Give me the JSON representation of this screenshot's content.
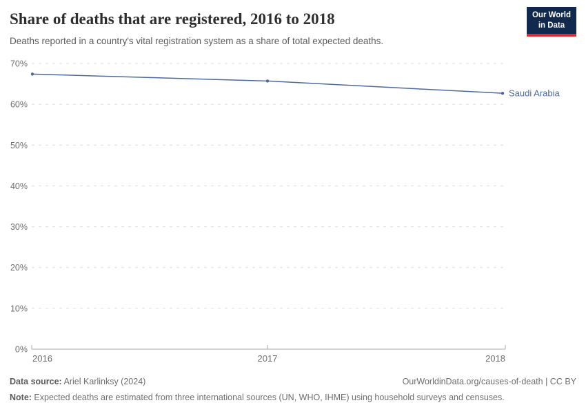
{
  "header": {
    "title": "Share of deaths that are registered, 2016 to 2018",
    "subtitle": "Deaths reported in a country's vital registration system as a share of total expected deaths.",
    "logo": {
      "line1": "Our World",
      "line2": "in Data",
      "bg_color": "#12294e",
      "accent_color": "#dc2e32"
    }
  },
  "chart_data": {
    "type": "line",
    "title": "Share of deaths that are registered, 2016 to 2018",
    "xlabel": "",
    "ylabel": "",
    "xlim": [
      2016,
      2018
    ],
    "ylim": [
      0,
      70
    ],
    "grid": "horizontal-dashed",
    "legend_position": "end-of-line-label",
    "xticks": [
      2016,
      2017,
      2018
    ],
    "yticks": [
      0,
      10,
      20,
      30,
      40,
      50,
      60,
      70
    ],
    "ytick_suffix": "%",
    "series": [
      {
        "name": "Saudi Arabia",
        "color": "#4c6a9c",
        "x": [
          2016,
          2017,
          2018
        ],
        "values": [
          67.4,
          65.7,
          62.7
        ]
      }
    ]
  },
  "footer": {
    "datasource_label": "Data source:",
    "datasource_value": " Ariel Karlinksy (2024)",
    "citation": "OurWorldinData.org/causes-of-death | CC BY",
    "note_label": "Note:",
    "note_value": " Expected deaths are estimated from three international sources (UN, WHO, IHME) using household surveys and censuses."
  },
  "colors": {
    "line": "#4c6a9c",
    "gridline": "#dcdcdc",
    "axis": "#a8a8a8",
    "tick_label": "#6e6e6e",
    "title": "#2e2e2e",
    "subtitle": "#5b5b5b",
    "footer": "#6e6e6e"
  }
}
